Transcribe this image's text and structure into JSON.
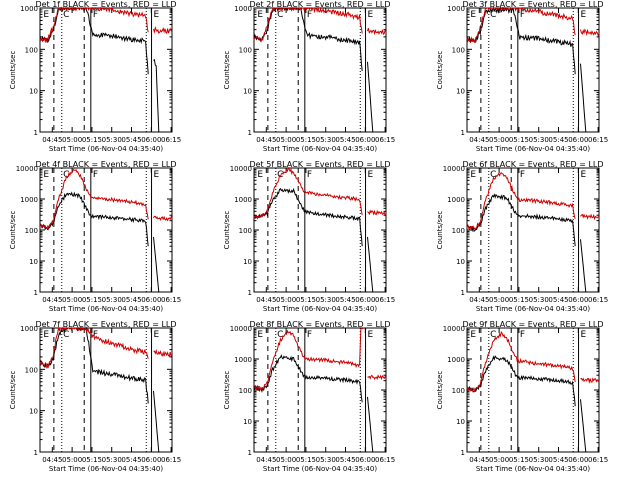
{
  "palette": {
    "background": "#ffffff",
    "axes": "#000000",
    "events": "#000000",
    "lld": "#cc0000"
  },
  "shared": {
    "subtitle": "BLACK = Events, RED = LLD",
    "xlabel": "Start Time (06-Nov-04 04:35:40)",
    "ylabel": "Counts/sec",
    "x_ticks": [
      "04:45",
      "05:00",
      "05:15",
      "05:30",
      "05:45",
      "06:00",
      "06:15"
    ],
    "x_tick_minutes": [
      9.33,
      24.33,
      39.33,
      54.33,
      69.33,
      84.33,
      99.33
    ],
    "y_tick_labels_3decade": [
      "1",
      "10",
      "100",
      "1000"
    ],
    "y_tick_labels_4decade": [
      "1",
      "10",
      "100",
      "1000",
      "10000"
    ],
    "attenuator_letters": [
      "E",
      "C",
      "F",
      "E"
    ]
  },
  "chart_data": [
    {
      "type": "line",
      "title": "Det 1f BLACK = Events, RED = LLD",
      "xlabel": "Start Time (06-Nov-04 04:35:40)",
      "ylabel": "Counts/sec",
      "x_unit": "minutes after 04:35:40",
      "ylog": true,
      "ylim": [
        1,
        1000
      ],
      "series": [
        {
          "name": "Events",
          "x": [
            0,
            6,
            10,
            14,
            20,
            35,
            40,
            55,
            70,
            80,
            82,
            86,
            88,
            90
          ],
          "values": [
            190,
            160,
            280,
            900,
            1000,
            1000,
            230,
            210,
            170,
            160,
            25,
            60,
            40,
            0
          ]
        },
        {
          "name": "LLD",
          "x": [
            0,
            6,
            10,
            14,
            20,
            35,
            40,
            55,
            70,
            80,
            82,
            86,
            90,
            100
          ],
          "values": [
            180,
            170,
            350,
            1000,
            1000,
            1000,
            1000,
            900,
            720,
            650,
            260,
            300,
            280,
            280
          ]
        }
      ],
      "vlines_dashed": [
        10.5,
        33.5
      ],
      "vlines_dotted": [
        16.5,
        80.5
      ],
      "vlines_solid": [
        38.5,
        84.5
      ]
    },
    {
      "type": "line",
      "title": "Det 2f BLACK = Events, RED = LLD",
      "xlabel": "Start Time (06-Nov-04 04:35:40)",
      "ylabel": "Counts/sec",
      "x_unit": "minutes after 04:35:40",
      "ylog": true,
      "ylim": [
        1,
        1000
      ],
      "series": [
        {
          "name": "Events",
          "x": [
            0,
            6,
            10,
            14,
            20,
            35,
            40,
            55,
            70,
            80,
            82,
            86,
            90
          ],
          "values": [
            200,
            170,
            300,
            900,
            1000,
            1000,
            220,
            200,
            165,
            150,
            30,
            50,
            0
          ]
        },
        {
          "name": "LLD",
          "x": [
            0,
            6,
            10,
            14,
            20,
            35,
            40,
            55,
            70,
            80,
            82,
            86,
            90,
            100
          ],
          "values": [
            190,
            170,
            360,
            1000,
            1000,
            1000,
            1000,
            850,
            700,
            600,
            240,
            290,
            270,
            260
          ]
        }
      ],
      "vlines_dashed": [
        10.5,
        33.5
      ],
      "vlines_dotted": [
        16.5,
        80.5
      ],
      "vlines_solid": [
        38.5,
        84.5
      ]
    },
    {
      "type": "line",
      "title": "Det 3f BLACK = Events, RED = LLD",
      "xlabel": "Start Time (06-Nov-04 04:35:40)",
      "ylabel": "Counts/sec",
      "x_unit": "minutes after 04:35:40",
      "ylog": true,
      "ylim": [
        1,
        1000
      ],
      "series": [
        {
          "name": "Events",
          "x": [
            0,
            6,
            10,
            14,
            20,
            35,
            40,
            55,
            70,
            80,
            82,
            86,
            90
          ],
          "values": [
            180,
            160,
            260,
            800,
            900,
            900,
            200,
            180,
            150,
            130,
            25,
            45,
            0
          ]
        },
        {
          "name": "LLD",
          "x": [
            0,
            6,
            10,
            14,
            20,
            35,
            40,
            55,
            70,
            80,
            82,
            86,
            90,
            100
          ],
          "values": [
            170,
            160,
            320,
            1000,
            1000,
            1000,
            1000,
            800,
            650,
            550,
            220,
            270,
            260,
            250
          ]
        }
      ],
      "vlines_dashed": [
        10.5,
        33.5
      ],
      "vlines_dotted": [
        16.5,
        80.5
      ],
      "vlines_solid": [
        38.5,
        84.5
      ]
    },
    {
      "type": "line",
      "title": "Det 4f BLACK = Events, RED = LLD",
      "xlabel": "Start Time (06-Nov-04 04:35:40)",
      "ylabel": "Counts/sec",
      "x_unit": "minutes after 04:35:40",
      "ylog": true,
      "ylim": [
        1,
        10000
      ],
      "series": [
        {
          "name": "Events",
          "x": [
            0,
            6,
            10,
            14,
            20,
            30,
            38,
            40,
            55,
            70,
            80,
            82,
            86,
            90
          ],
          "values": [
            150,
            110,
            160,
            600,
            1500,
            1300,
            300,
            280,
            250,
            220,
            190,
            30,
            60,
            0
          ]
        },
        {
          "name": "LLD",
          "x": [
            0,
            6,
            10,
            14,
            20,
            26,
            30,
            38,
            40,
            55,
            70,
            80,
            82,
            86,
            90,
            100
          ],
          "values": [
            140,
            120,
            200,
            1000,
            5000,
            9000,
            6000,
            1200,
            1100,
            950,
            800,
            650,
            220,
            250,
            240,
            230
          ]
        }
      ],
      "vlines_dashed": [
        10.5,
        33.5
      ],
      "vlines_dotted": [
        16.5,
        80.5
      ],
      "vlines_solid": [
        38.5,
        84.5
      ]
    },
    {
      "type": "line",
      "title": "Det 5f BLACK = Events, RED = LLD",
      "xlabel": "Start Time (06-Nov-04 04:35:40)",
      "ylabel": "Counts/sec",
      "x_unit": "minutes after 04:35:40",
      "ylog": true,
      "ylim": [
        1,
        10000
      ],
      "series": [
        {
          "name": "Events",
          "x": [
            0,
            6,
            10,
            14,
            20,
            30,
            38,
            40,
            55,
            70,
            80,
            82,
            86,
            90
          ],
          "values": [
            260,
            280,
            350,
            900,
            2000,
            1800,
            400,
            380,
            300,
            260,
            230,
            30,
            60,
            0
          ]
        },
        {
          "name": "LLD",
          "x": [
            0,
            6,
            10,
            14,
            20,
            26,
            30,
            38,
            40,
            55,
            70,
            80,
            82,
            86,
            90,
            100
          ],
          "values": [
            250,
            270,
            400,
            1500,
            6000,
            9000,
            7000,
            1800,
            1600,
            1300,
            1100,
            950,
            300,
            380,
            360,
            340
          ]
        }
      ],
      "vlines_dashed": [
        10.5,
        33.5
      ],
      "vlines_dotted": [
        16.5,
        80.5
      ],
      "vlines_solid": [
        38.5,
        84.5
      ]
    },
    {
      "type": "line",
      "title": "Det 6f BLACK = Events, RED = LLD",
      "xlabel": "Start Time (06-Nov-04 04:35:40)",
      "ylabel": "Counts/sec",
      "x_unit": "minutes after 04:35:40",
      "ylog": true,
      "ylim": [
        1,
        10000
      ],
      "series": [
        {
          "name": "Events",
          "x": [
            0,
            6,
            10,
            14,
            20,
            30,
            38,
            40,
            55,
            70,
            80,
            82,
            86,
            90
          ],
          "values": [
            140,
            100,
            150,
            500,
            1300,
            1100,
            300,
            290,
            260,
            230,
            200,
            30,
            50,
            0
          ]
        },
        {
          "name": "LLD",
          "x": [
            0,
            6,
            10,
            14,
            20,
            26,
            30,
            38,
            40,
            55,
            70,
            80,
            82,
            86,
            90,
            100
          ],
          "values": [
            130,
            110,
            180,
            900,
            4500,
            7000,
            5000,
            1000,
            950,
            850,
            700,
            600,
            230,
            280,
            270,
            260
          ]
        }
      ],
      "vlines_dashed": [
        10.5,
        33.5
      ],
      "vlines_dotted": [
        16.5,
        80.5
      ],
      "vlines_solid": [
        38.5,
        84.5
      ]
    },
    {
      "type": "line",
      "title": "Det 7f BLACK = Events, RED = LLD",
      "xlabel": "Start Time (06-Nov-04 04:35:40)",
      "ylabel": "Counts/sec",
      "x_unit": "minutes after 04:35:40",
      "ylog": true,
      "ylim": [
        1,
        1000
      ],
      "series": [
        {
          "name": "Events",
          "x": [
            0,
            6,
            10,
            14,
            20,
            35,
            40,
            55,
            70,
            80,
            82,
            86,
            90
          ],
          "values": [
            150,
            120,
            180,
            700,
            1000,
            1000,
            90,
            75,
            60,
            55,
            15,
            30,
            0
          ]
        },
        {
          "name": "LLD",
          "x": [
            0,
            6,
            10,
            14,
            20,
            35,
            40,
            55,
            70,
            80,
            82,
            86,
            90,
            100
          ],
          "values": [
            140,
            120,
            220,
            1000,
            1000,
            1000,
            600,
            420,
            300,
            260,
            180,
            260,
            240,
            230
          ]
        }
      ],
      "vlines_dashed": [
        10.5,
        33.5
      ],
      "vlines_dotted": [
        16.5,
        80.5
      ],
      "vlines_solid": [
        38.5,
        84.5
      ]
    },
    {
      "type": "line",
      "title": "Det 8f BLACK = Events, RED = LLD",
      "xlabel": "Start Time (06-Nov-04 04:35:40)",
      "ylabel": "Counts/sec",
      "x_unit": "minutes after 04:35:40",
      "ylog": true,
      "ylim": [
        1,
        10000
      ],
      "series": [
        {
          "name": "Events",
          "x": [
            0,
            6,
            10,
            14,
            20,
            30,
            38,
            40,
            55,
            70,
            80,
            82,
            86,
            90
          ],
          "values": [
            130,
            100,
            140,
            450,
            1200,
            1000,
            280,
            260,
            240,
            210,
            180,
            40,
            60,
            0
          ]
        },
        {
          "name": "LLD",
          "x": [
            0,
            6,
            10,
            14,
            20,
            26,
            30,
            38,
            40,
            55,
            70,
            80,
            81,
            83,
            84,
            86,
            90,
            100
          ],
          "values": [
            120,
            110,
            170,
            800,
            4000,
            8000,
            5500,
            1100,
            1000,
            900,
            750,
            600,
            10000,
            10000,
            300,
            270,
            260,
            250
          ]
        }
      ],
      "vlines_dashed": [
        10.5,
        33.5
      ],
      "vlines_dotted": [
        16.5,
        80.5
      ],
      "vlines_solid": [
        38.5,
        84.5
      ]
    },
    {
      "type": "line",
      "title": "Det 9f BLACK = Events, RED = LLD",
      "xlabel": "Start Time (06-Nov-04 04:35:40)",
      "ylabel": "Counts/sec",
      "x_unit": "minutes after 04:35:40",
      "ylog": true,
      "ylim": [
        1,
        10000
      ],
      "series": [
        {
          "name": "Events",
          "x": [
            0,
            6,
            10,
            14,
            20,
            30,
            38,
            40,
            55,
            70,
            80,
            82,
            86,
            90
          ],
          "values": [
            120,
            90,
            130,
            400,
            1100,
            950,
            260,
            250,
            230,
            200,
            170,
            30,
            50,
            0
          ]
        },
        {
          "name": "LLD",
          "x": [
            0,
            6,
            10,
            14,
            20,
            26,
            30,
            38,
            40,
            55,
            70,
            80,
            82,
            86,
            90,
            100
          ],
          "values": [
            110,
            100,
            160,
            750,
            3800,
            6500,
            4800,
            900,
            850,
            700,
            600,
            500,
            180,
            220,
            210,
            200
          ]
        }
      ],
      "vlines_dashed": [
        10.5,
        33.5
      ],
      "vlines_dotted": [
        16.5,
        80.5
      ],
      "vlines_solid": [
        38.5,
        84.5
      ]
    }
  ]
}
